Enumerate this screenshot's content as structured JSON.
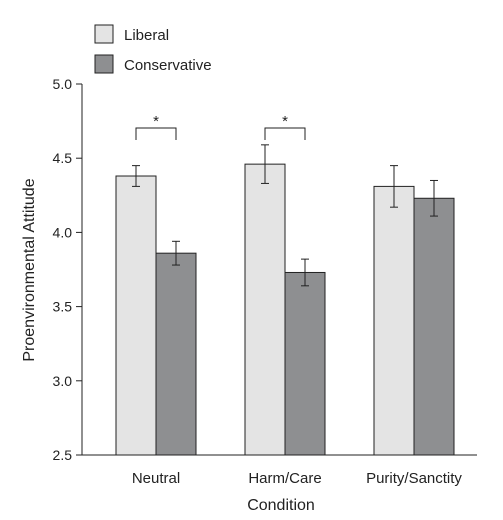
{
  "chart_data": {
    "type": "bar",
    "xlabel": "Condition",
    "ylabel": "Proenvironmental Attitude",
    "ylim": [
      2.5,
      5.0
    ],
    "yticks": [
      "2.5",
      "3.0",
      "3.5",
      "4.0",
      "4.5",
      "5.0"
    ],
    "categories": [
      "Neutral",
      "Harm/Care",
      "Purity/Sanctity"
    ],
    "series": [
      {
        "name": "Liberal",
        "color": "#e4e4e4",
        "values": [
          4.38,
          4.46,
          4.31
        ],
        "errors": [
          0.07,
          0.13,
          0.14
        ]
      },
      {
        "name": "Conservative",
        "color": "#8e8f91",
        "values": [
          3.86,
          3.73,
          4.23
        ],
        "errors": [
          0.08,
          0.09,
          0.12
        ]
      }
    ],
    "significance": [
      {
        "category": "Neutral",
        "label": "*"
      },
      {
        "category": "Harm/Care",
        "label": "*"
      }
    ],
    "legend_position": "top-left",
    "grid": false
  }
}
